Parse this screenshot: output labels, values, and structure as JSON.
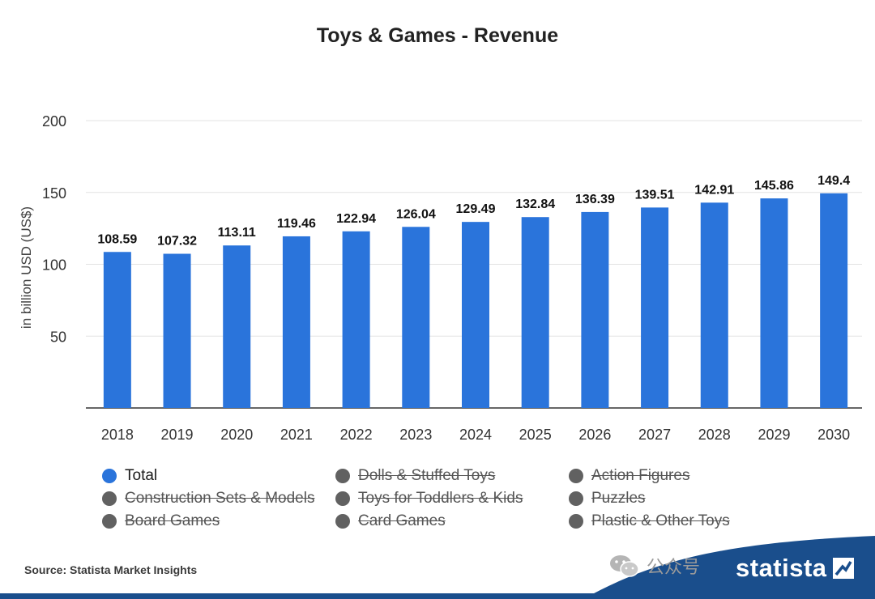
{
  "chart_data": {
    "type": "bar",
    "title": "Toys & Games - Revenue",
    "ylabel": "in billion USD (US$)",
    "xlabel": "",
    "ylim": [
      0,
      200
    ],
    "yticks": [
      50,
      100,
      150,
      200
    ],
    "grid": true,
    "bar_color": "#2a74db",
    "categories": [
      "2018",
      "2019",
      "2020",
      "2021",
      "2022",
      "2023",
      "2024",
      "2025",
      "2026",
      "2027",
      "2028",
      "2029",
      "2030"
    ],
    "values": [
      108.59,
      107.32,
      113.11,
      119.46,
      122.94,
      126.04,
      129.49,
      132.84,
      136.39,
      139.51,
      142.91,
      145.86,
      149.4
    ],
    "value_labels": [
      "108.59",
      "107.32",
      "113.11",
      "119.46",
      "122.94",
      "126.04",
      "129.49",
      "132.84",
      "136.39",
      "139.51",
      "142.91",
      "145.86",
      "149.4"
    ],
    "legend": [
      {
        "label": "Total",
        "active": true,
        "color": "#2a74db"
      },
      {
        "label": "Dolls & Stuffed Toys",
        "active": false,
        "color": "#616161"
      },
      {
        "label": "Action Figures",
        "active": false,
        "color": "#616161"
      },
      {
        "label": "Construction Sets & Models",
        "active": false,
        "color": "#616161"
      },
      {
        "label": "Toys for Toddlers & Kids",
        "active": false,
        "color": "#616161"
      },
      {
        "label": "Puzzles",
        "active": false,
        "color": "#616161"
      },
      {
        "label": "Board Games",
        "active": false,
        "color": "#616161"
      },
      {
        "label": "Card Games",
        "active": false,
        "color": "#616161"
      },
      {
        "label": "Plastic & Other Toys",
        "active": false,
        "color": "#616161"
      }
    ]
  },
  "footer": {
    "source": "Source: Statista Market Insights",
    "watermark": "公众号",
    "brand": "statista",
    "brand_color": "#1a4e8c"
  }
}
